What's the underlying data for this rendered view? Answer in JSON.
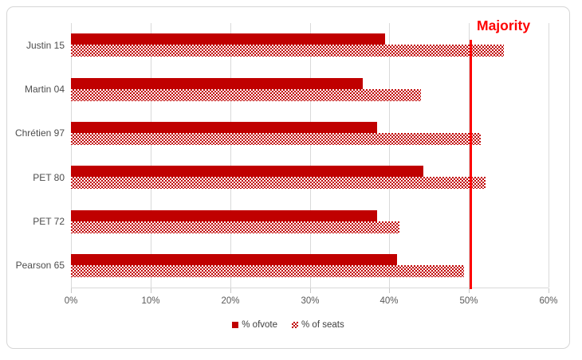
{
  "chart_data": {
    "type": "bar",
    "orientation": "horizontal",
    "title": "",
    "xlabel": "",
    "ylabel": "",
    "categories": [
      "Justin 15",
      "Martin 04",
      "Chrétien 97",
      "PET 80",
      "PET 72",
      "Pearson 65"
    ],
    "series": [
      {
        "name": "% ofvote",
        "style": "solid",
        "values": [
          39.5,
          36.7,
          38.5,
          44.3,
          38.5,
          41.0
        ]
      },
      {
        "name": "% of seats",
        "style": "pattern",
        "values": [
          54.4,
          44.0,
          51.5,
          52.1,
          41.3,
          49.4
        ]
      }
    ],
    "xlim": [
      0,
      60
    ],
    "tick_values": [
      0,
      10,
      20,
      30,
      40,
      50,
      60
    ],
    "x_ticks": [
      "0%",
      "10%",
      "20%",
      "30%",
      "40%",
      "50%",
      "60%"
    ],
    "grid": true,
    "legend_position": "bottom",
    "annotation": {
      "label": "Majority",
      "x": 50
    },
    "colors": {
      "vote_bar": "#c00000",
      "seats_pattern": "#c00000",
      "majority": "#fe0000",
      "gridline": "#d9d9d9",
      "axis_text": "#595959"
    }
  }
}
